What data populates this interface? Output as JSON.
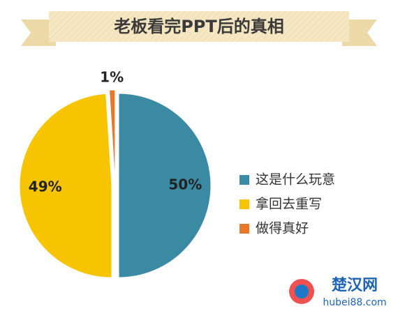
{
  "chart_data": {
    "type": "pie",
    "title": "老板看完PPT后的真相",
    "categories": [
      "这是什么玩意",
      "拿回去重写",
      "做得真好"
    ],
    "values": [
      50,
      49,
      1
    ],
    "value_labels": [
      "50%",
      "49%",
      "1%"
    ],
    "colors": [
      "#3b8aa4",
      "#f6c400",
      "#e8782a"
    ],
    "legend": "right"
  },
  "watermark": {
    "name": "楚汉网",
    "url": "hubei88.com"
  }
}
